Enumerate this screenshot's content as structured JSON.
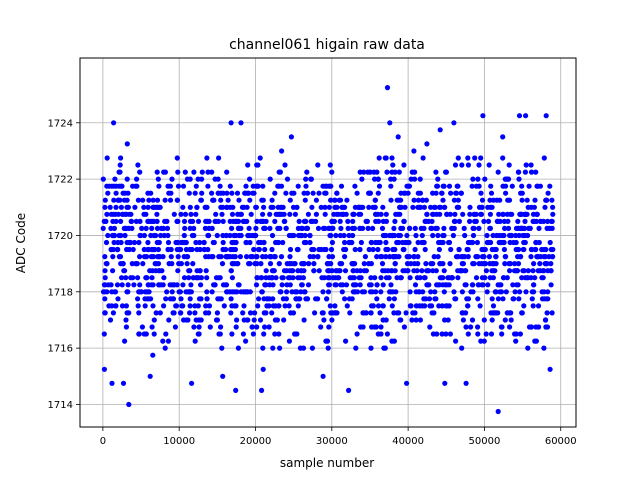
{
  "chart_data": {
    "type": "scatter",
    "title": "channel061 higain raw data",
    "xlabel": "sample number",
    "ylabel": "ADC Code",
    "xlim": [
      -3000,
      62000
    ],
    "ylim": [
      1713.2,
      1726.3
    ],
    "x_ticks": [
      0,
      10000,
      20000,
      30000,
      40000,
      50000,
      60000
    ],
    "x_tick_labels": [
      "0",
      "10000",
      "20000",
      "30000",
      "40000",
      "50000",
      "60000"
    ],
    "y_ticks": [
      1714,
      1716,
      1718,
      1720,
      1722,
      1724
    ],
    "y_tick_labels": [
      "1714",
      "1716",
      "1718",
      "1720",
      "1722",
      "1724"
    ],
    "grid": true,
    "marker_color": "#0000ff",
    "x_range": [
      0,
      59000
    ],
    "y_resolution": 0.25,
    "points": [
      {
        "x": 37300,
        "y": 1725.25
      },
      {
        "x": 1400,
        "y": 1724.0
      },
      {
        "x": 16800,
        "y": 1724.0
      },
      {
        "x": 18100,
        "y": 1724.0
      },
      {
        "x": 37600,
        "y": 1724.0
      },
      {
        "x": 46000,
        "y": 1724.0
      },
      {
        "x": 49800,
        "y": 1724.25
      },
      {
        "x": 54600,
        "y": 1724.25
      },
      {
        "x": 55400,
        "y": 1724.25
      },
      {
        "x": 58100,
        "y": 1724.25
      },
      {
        "x": 3400,
        "y": 1714.0
      },
      {
        "x": 51800,
        "y": 1713.75
      },
      {
        "x": 200,
        "y": 1715.25
      },
      {
        "x": 1200,
        "y": 1714.75
      },
      {
        "x": 2700,
        "y": 1714.75
      },
      {
        "x": 6200,
        "y": 1715.0
      },
      {
        "x": 17400,
        "y": 1714.5
      },
      {
        "x": 20800,
        "y": 1714.5
      },
      {
        "x": 32200,
        "y": 1714.5
      },
      {
        "x": 39800,
        "y": 1714.75
      },
      {
        "x": 44800,
        "y": 1714.75
      },
      {
        "x": 47600,
        "y": 1714.75
      },
      {
        "x": 58600,
        "y": 1715.25
      },
      {
        "x": 3200,
        "y": 1723.25
      },
      {
        "x": 24700,
        "y": 1723.5
      },
      {
        "x": 44200,
        "y": 1723.75
      },
      {
        "x": 52400,
        "y": 1723.5
      }
    ]
  }
}
